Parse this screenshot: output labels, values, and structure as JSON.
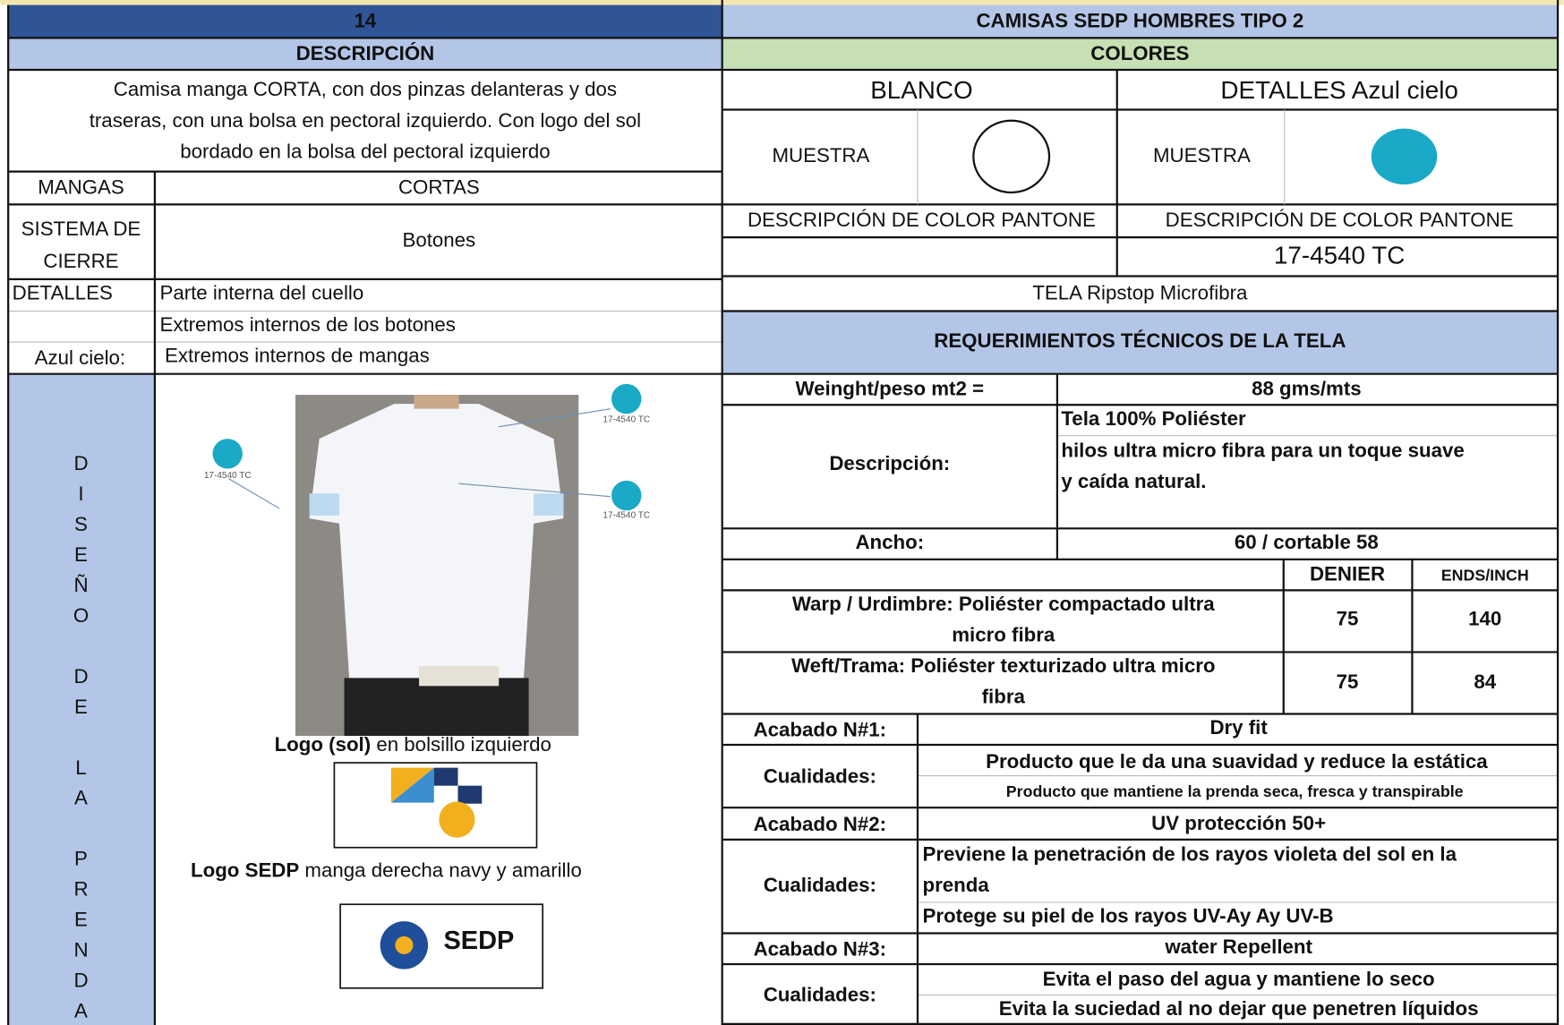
{
  "header": {
    "number": "14",
    "title": "CAMISAS SEDP HOMBRES TIPO 2"
  },
  "description": {
    "heading": "DESCRIPCIÓN",
    "lines": [
      "Camisa  manga CORTA,  con dos pinzas delanteras y dos",
      "traseras, con una bolsa en pectoral izquierdo.  Con logo del sol",
      "bordado en la bolsa del pectoral izquierdo"
    ]
  },
  "fields": {
    "mangas_label": "MANGAS",
    "mangas": "CORTAS",
    "cierre_label": [
      "SISTEMA DE",
      "CIERRE"
    ],
    "cierre": "Botones",
    "detalles_label": "DETALLES",
    "azul_label": "Azul cielo:",
    "detalles": [
      "Parte interna del cuello",
      "Extremos internos de los botones",
      "Extremos internos de mangas"
    ]
  },
  "design": {
    "vertical_words": [
      "DISEÑO",
      "DE",
      "LA",
      "PRENDA"
    ],
    "annotations": [
      "17-4540 TC",
      "17-4540 TC",
      "17-4540 TC"
    ],
    "logo_sol": {
      "bold": "Logo (sol)",
      "rest": " en bolsillo izquierdo"
    },
    "logo_sedp": {
      "bold": "Logo SEDP",
      "rest": " manga derecha navy y amarillo"
    },
    "sedp_logo_text": "SEDP"
  },
  "colors": {
    "heading": "COLORES",
    "items": [
      {
        "name": "BLANCO",
        "sample_label": "MUESTRA",
        "pantone_label": "DESCRIPCIÓN DE COLOR PANTONE",
        "swatch": "#ffffff"
      },
      {
        "name": "DETALLES Azul cielo",
        "sample_label": "MUESTRA",
        "pantone_label": "DESCRIPCIÓN DE COLOR PANTONE",
        "pantone": "17-4540 TC",
        "swatch": "#1aa9c6"
      }
    ],
    "fabric": "TELA Ripstop Microfibra"
  },
  "requirements": {
    "heading": "REQUERIMIENTOS TÉCNICOS DE LA TELA",
    "weight_label": "Weinght/peso  mt2 =",
    "weight": "88 gms/mts",
    "desc_label": "Descripción:",
    "desc": [
      "Tela 100% Poliéster",
      "hilos ultra micro fibra para un  toque suave",
      "y caída natural."
    ],
    "ancho_label": "Ancho:",
    "ancho": "60 / cortable 58",
    "columns": [
      "DENIER",
      "ENDS/INCH"
    ],
    "yarns": [
      {
        "label": [
          "Warp / Urdimbre: Poliéster compactado ultra",
          "micro fibra"
        ],
        "denier": 75,
        "ends": 140
      },
      {
        "label": [
          "Weft/Trama: Poliéster texturizado ultra micro",
          "fibra"
        ],
        "denier": 75,
        "ends": 84
      }
    ],
    "finishes": [
      {
        "label": "Acabado N#1:",
        "name": "Dry fit",
        "qual_label": "Cualidades:",
        "qualities": [
          "Producto que le da una suavidad y  reduce la estática",
          "Producto que mantiene la prenda seca, fresca y transpirable"
        ]
      },
      {
        "label": "Acabado N#2:",
        "name": "UV protección  50+",
        "qual_label": "Cualidades:",
        "qualities": [
          "Previene la penetración de los rayos violeta del sol en la",
          "prenda",
          "Protege su piel de los rayos UV-Ay  Ay UV-B"
        ]
      },
      {
        "label": "Acabado N#3:",
        "name": "water Repellent",
        "qual_label": "Cualidades:",
        "qualities": [
          "Evita el paso del agua y mantiene lo seco",
          "Evita la suciedad al no dejar que penetren líquidos"
        ]
      }
    ]
  }
}
